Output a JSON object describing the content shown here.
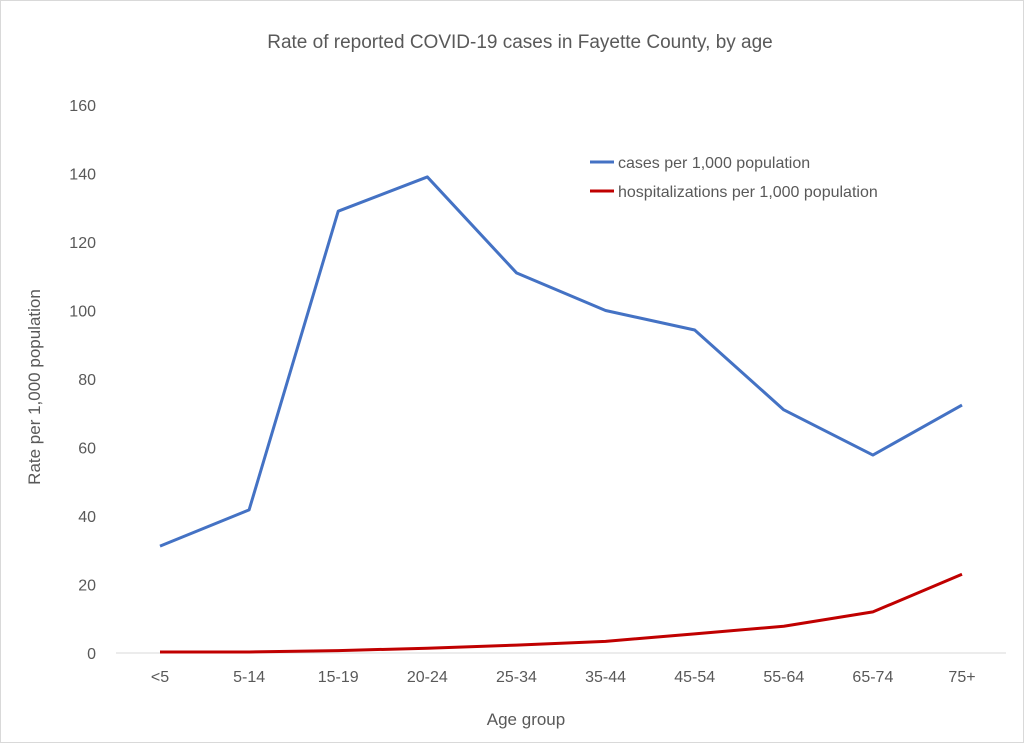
{
  "chart_data": {
    "type": "line",
    "title": "Rate of reported COVID-19 cases in Fayette County, by age",
    "xlabel": "Age group",
    "ylabel": "Rate per 1,000 population",
    "categories": [
      "<5",
      "5-14",
      "15-19",
      "20-24",
      "25-34",
      "35-44",
      "45-54",
      "55-64",
      "65-74",
      "75+"
    ],
    "ylim": [
      0,
      160
    ],
    "yticks": [
      0,
      20,
      40,
      60,
      80,
      100,
      120,
      140,
      160
    ],
    "grid": false,
    "legend_position": "top-right",
    "series": [
      {
        "name": "cases per 1,000 population",
        "color": "#4472C4",
        "values": [
          31.2,
          41.8,
          129,
          139,
          111,
          100,
          94.3,
          71,
          57.8,
          72.4
        ]
      },
      {
        "name": "hospitalizations per 1,000 population",
        "color": "#C00000",
        "values": [
          0.3,
          0.3,
          0.7,
          1.4,
          2.3,
          3.4,
          5.6,
          7.8,
          12,
          23
        ]
      }
    ]
  }
}
